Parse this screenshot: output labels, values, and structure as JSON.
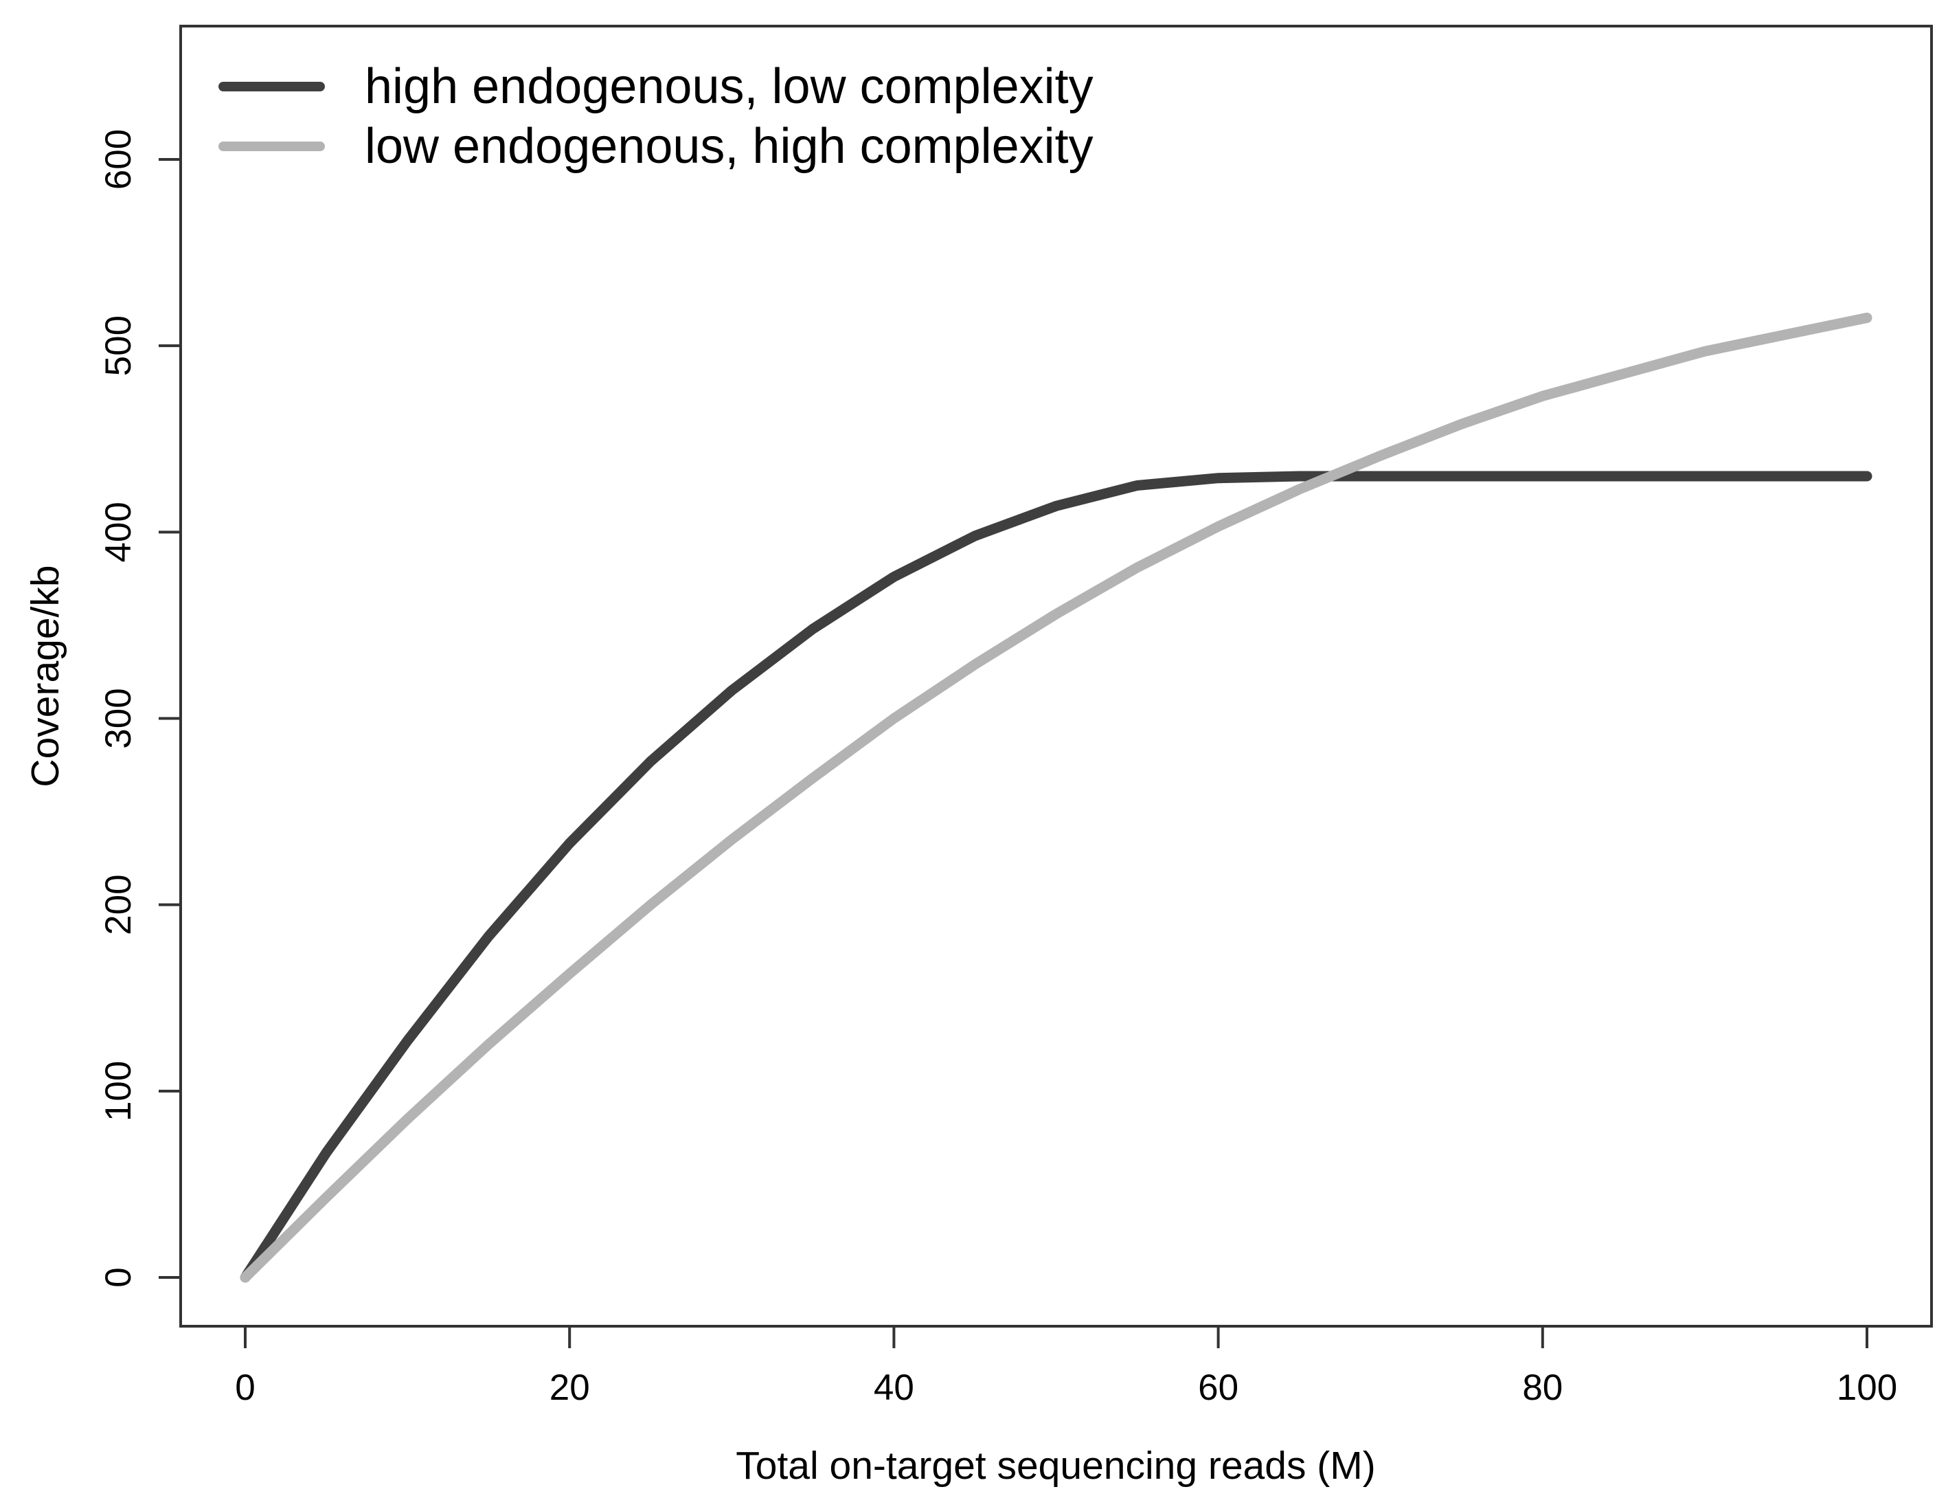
{
  "figure": {
    "background": "#ffffff",
    "axis_color": "#333333",
    "text_color": "#000000"
  },
  "chart_data": {
    "type": "line",
    "title": "",
    "xlabel": "Total on-target sequencing reads (M)",
    "ylabel": "Coverage/kb",
    "x_range": [
      0,
      100
    ],
    "y_range": [
      0,
      600
    ],
    "x_ticks": [
      0,
      20,
      40,
      60,
      80,
      100
    ],
    "y_ticks": [
      0,
      100,
      200,
      300,
      400,
      500,
      600
    ],
    "grid": false,
    "legend_position": "top-left",
    "x": [
      0,
      5,
      10,
      15,
      20,
      25,
      30,
      35,
      40,
      45,
      50,
      55,
      60,
      65,
      70,
      75,
      80,
      85,
      90,
      95,
      100
    ],
    "series": [
      {
        "name": "high endogenous, low complexity",
        "color": "#3f3f3f",
        "values": [
          0,
          67,
          127,
          183,
          233,
          277,
          315,
          348,
          376,
          398,
          414,
          425,
          429,
          430,
          430,
          430,
          430,
          430,
          430,
          430,
          430
        ]
      },
      {
        "name": "low endogenous, high complexity",
        "color": "#b3b3b3",
        "values": [
          0,
          43,
          85,
          125,
          163,
          200,
          235,
          268,
          300,
          329,
          356,
          381,
          403,
          423,
          441,
          458,
          473,
          485,
          497,
          506,
          515
        ]
      }
    ]
  }
}
